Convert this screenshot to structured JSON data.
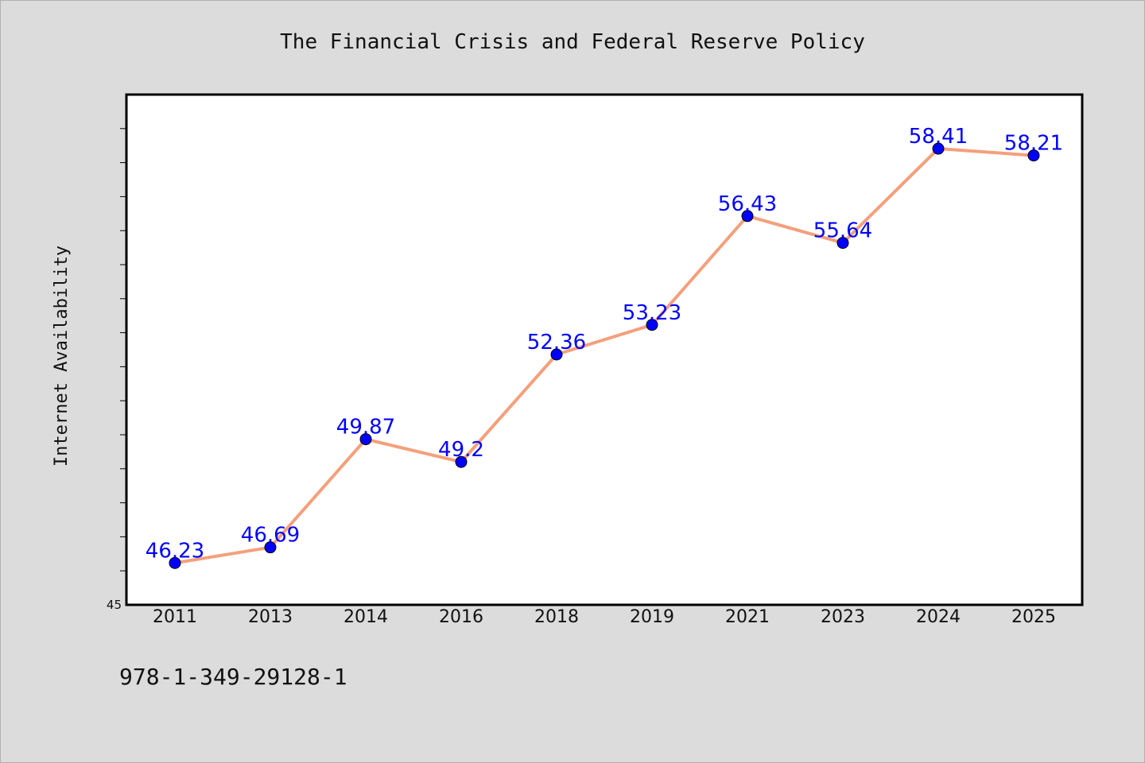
{
  "chart_data": {
    "type": "line",
    "title": "The Financial Crisis and Federal Reserve Policy",
    "xlabel": "",
    "ylabel": "Internet Availability",
    "categories": [
      "2011",
      "2013",
      "2014",
      "2016",
      "2018",
      "2019",
      "2021",
      "2023",
      "2024",
      "2025"
    ],
    "values": [
      46.23,
      46.69,
      49.87,
      49.2,
      52.36,
      53.23,
      56.43,
      55.64,
      58.41,
      58.21
    ],
    "value_labels": [
      "46.23",
      "46.69",
      "49.87",
      "49.2",
      "52.36",
      "53.23",
      "56.43",
      "55.64",
      "58.41",
      "58.21"
    ],
    "ylim": [
      45,
      60
    ],
    "y_tick_labels": [
      "45"
    ],
    "grid": false,
    "line_color": "#f4a07c",
    "marker_color": "#0000ff",
    "label_color": "#0000ff"
  },
  "footer": {
    "isbn": "978-1-349-29128-1"
  }
}
